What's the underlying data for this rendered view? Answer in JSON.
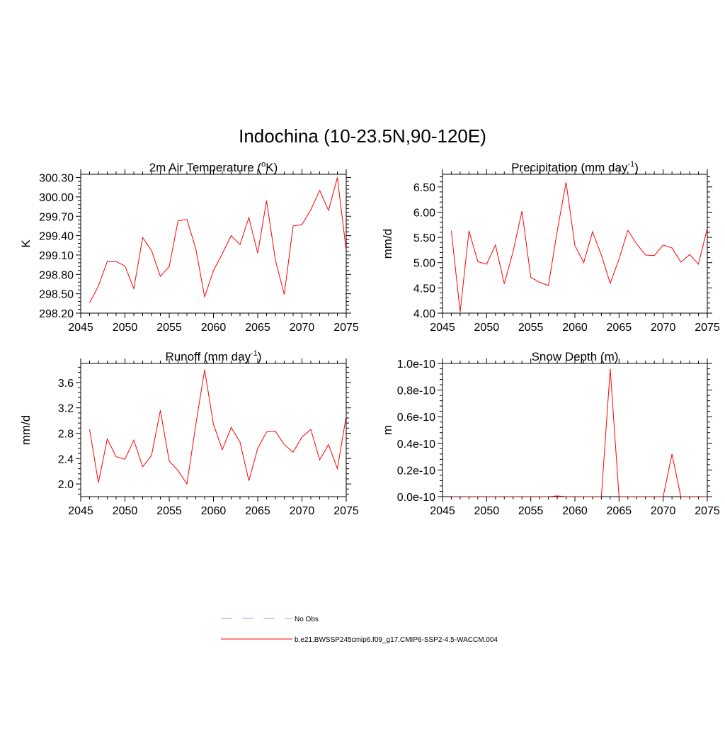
{
  "figure": {
    "title": "Indochina (10-23.5N,90-120E)"
  },
  "legend": {
    "items": [
      {
        "label": "No Obs",
        "color": "#9999ee",
        "dash": "dashed"
      },
      {
        "label": "b.e21.BWSSP245cmip6.f09_g17.CMIP6-SSP2-4.5-WACCM.004",
        "color": "#ff0000",
        "dash": "solid"
      }
    ]
  },
  "chart_data": [
    {
      "type": "line",
      "title": "2m Air Temperature (",
      "title_sup": "o",
      "title_suffix": "K)",
      "ylabel": "K",
      "xlim": [
        2045,
        2075
      ],
      "ylim": [
        298.2,
        300.35
      ],
      "xticks": [
        2045,
        2050,
        2055,
        2060,
        2065,
        2070,
        2075
      ],
      "yticks": [
        298.2,
        298.5,
        298.8,
        299.1,
        299.4,
        299.7,
        300.0,
        300.3
      ],
      "ytick_labels": [
        "298.20",
        "298.50",
        "298.80",
        "299.10",
        "299.40",
        "299.70",
        "300.00",
        "300.30"
      ],
      "x": [
        2046,
        2047,
        2048,
        2049,
        2050,
        2051,
        2052,
        2053,
        2054,
        2055,
        2056,
        2057,
        2058,
        2059,
        2060,
        2061,
        2062,
        2063,
        2064,
        2065,
        2066,
        2067,
        2068,
        2069,
        2070,
        2071,
        2072,
        2073,
        2074,
        2075
      ],
      "series": [
        {
          "name": "b.e21.BWSSP245cmip6.f09_g17.CMIP6-SSP2-4.5-WACCM.004",
          "color": "#ff0000",
          "values": [
            298.36,
            298.62,
            299.0,
            299.0,
            298.93,
            298.58,
            299.37,
            299.17,
            298.77,
            298.92,
            299.63,
            299.65,
            299.2,
            298.45,
            298.86,
            299.12,
            299.4,
            299.26,
            299.68,
            299.13,
            299.94,
            299.02,
            298.49,
            299.55,
            299.57,
            299.8,
            300.1,
            299.79,
            300.3,
            299.17
          ]
        }
      ]
    },
    {
      "type": "line",
      "title": "Precipitation (mm day",
      "title_sup": "-1",
      "title_suffix": ")",
      "ylabel": "mm/d",
      "xlim": [
        2045,
        2075
      ],
      "ylim": [
        4.0,
        6.75
      ],
      "xticks": [
        2045,
        2050,
        2055,
        2060,
        2065,
        2070,
        2075
      ],
      "yticks": [
        4.0,
        4.5,
        5.0,
        5.5,
        6.0,
        6.5
      ],
      "ytick_labels": [
        "4.00",
        "4.50",
        "5.00",
        "5.50",
        "6.00",
        "6.50"
      ],
      "x": [
        2046,
        2047,
        2048,
        2049,
        2050,
        2051,
        2052,
        2053,
        2054,
        2055,
        2056,
        2057,
        2058,
        2059,
        2060,
        2061,
        2062,
        2063,
        2064,
        2065,
        2066,
        2067,
        2068,
        2069,
        2070,
        2071,
        2072,
        2073,
        2074,
        2075
      ],
      "series": [
        {
          "name": "b.e21.BWSSP245cmip6.f09_g17.CMIP6-SSP2-4.5-WACCM.004",
          "color": "#ff0000",
          "values": [
            5.63,
            4.02,
            5.63,
            5.02,
            4.97,
            5.35,
            4.58,
            5.22,
            6.02,
            4.71,
            4.61,
            4.55,
            5.63,
            6.59,
            5.34,
            5.0,
            5.61,
            5.15,
            4.59,
            5.07,
            5.64,
            5.37,
            5.15,
            5.14,
            5.35,
            5.29,
            5.01,
            5.16,
            4.97,
            5.68
          ]
        }
      ]
    },
    {
      "type": "line",
      "title": "Runoff (mm day",
      "title_sup": "-1",
      "title_suffix": ")",
      "ylabel": "mm/d",
      "xlim": [
        2045,
        2075
      ],
      "ylim": [
        1.8,
        3.9
      ],
      "xticks": [
        2045,
        2050,
        2055,
        2060,
        2065,
        2070,
        2075
      ],
      "yticks": [
        2.0,
        2.4,
        2.8,
        3.2,
        3.6
      ],
      "ytick_labels": [
        "2.0",
        "2.4",
        "2.8",
        "3.2",
        "3.6"
      ],
      "x": [
        2046,
        2047,
        2048,
        2049,
        2050,
        2051,
        2052,
        2053,
        2054,
        2055,
        2056,
        2057,
        2058,
        2059,
        2060,
        2061,
        2062,
        2063,
        2064,
        2065,
        2066,
        2067,
        2068,
        2069,
        2070,
        2071,
        2072,
        2073,
        2074,
        2075
      ],
      "series": [
        {
          "name": "b.e21.BWSSP245cmip6.f09_g17.CMIP6-SSP2-4.5-WACCM.004",
          "color": "#ff0000",
          "values": [
            2.86,
            2.02,
            2.71,
            2.43,
            2.39,
            2.69,
            2.27,
            2.45,
            3.16,
            2.36,
            2.21,
            2.0,
            2.93,
            3.8,
            2.94,
            2.54,
            2.89,
            2.66,
            2.05,
            2.56,
            2.82,
            2.83,
            2.62,
            2.5,
            2.74,
            2.86,
            2.38,
            2.62,
            2.24,
            3.07
          ]
        }
      ]
    },
    {
      "type": "line",
      "title": "Snow Depth (m)",
      "title_sup": "",
      "title_suffix": "",
      "ylabel": "m",
      "xlim": [
        2045,
        2075
      ],
      "ylim": [
        0,
        1e-10
      ],
      "xticks": [
        2045,
        2050,
        2055,
        2060,
        2065,
        2070,
        2075
      ],
      "yticks": [
        0,
        2e-11,
        4e-11,
        6e-11,
        8e-11,
        1e-10
      ],
      "ytick_labels": [
        "0.0e-10",
        "0.2e-10",
        "0.4e-10",
        "0.6e-10",
        "0.8e-10",
        "1.0e-10"
      ],
      "x": [
        2046,
        2047,
        2048,
        2049,
        2050,
        2051,
        2052,
        2053,
        2054,
        2055,
        2056,
        2057,
        2058,
        2059,
        2060,
        2061,
        2062,
        2063,
        2064,
        2065,
        2066,
        2067,
        2068,
        2069,
        2070,
        2071,
        2072,
        2073,
        2074,
        2075
      ],
      "series": [
        {
          "name": "b.e21.BWSSP245cmip6.f09_g17.CMIP6-SSP2-4.5-WACCM.004",
          "color": "#ff0000",
          "values": [
            0,
            0,
            0,
            0,
            0,
            0,
            0,
            0,
            0,
            0,
            0,
            0,
            5e-13,
            0,
            0,
            0,
            0,
            0,
            9.6e-11,
            0,
            0,
            0,
            0,
            0,
            0,
            3.2e-11,
            0,
            0,
            0,
            0
          ]
        }
      ]
    }
  ]
}
